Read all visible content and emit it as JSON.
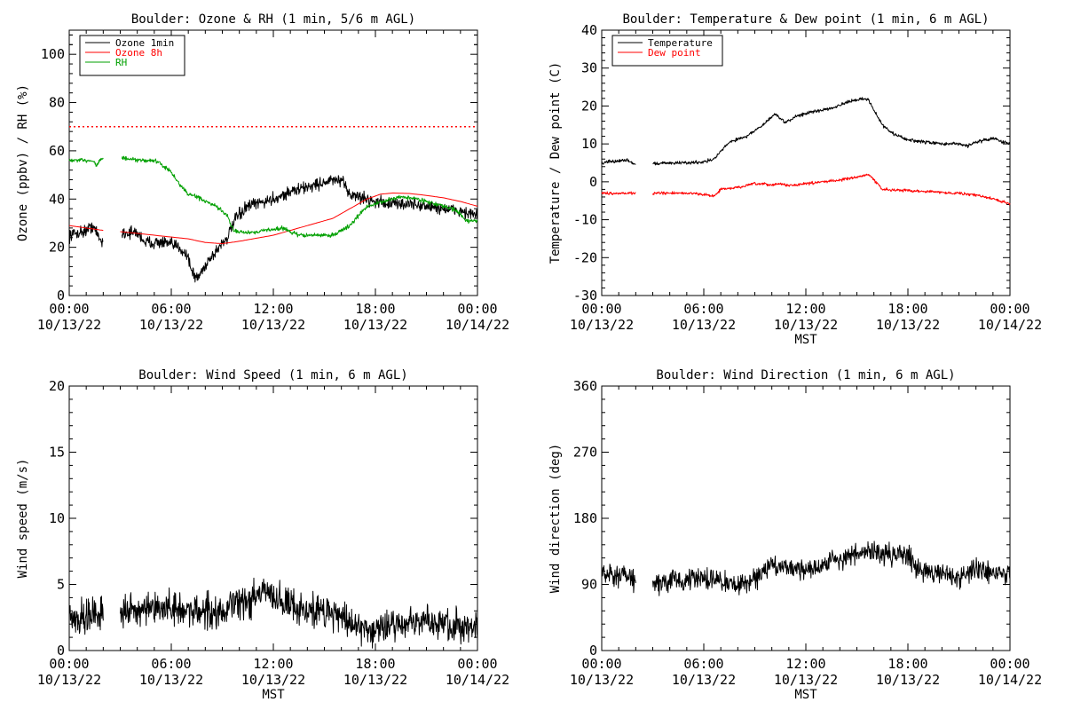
{
  "chart_data": [
    {
      "type": "line",
      "title": "Boulder: Ozone & RH (1 min, 5/6 m AGL)",
      "xlabel": "",
      "ylabel": "Ozone (ppbv) / RH (%)",
      "xlim": [
        "2022-10-13 00:00",
        "2022-10-14 00:00"
      ],
      "ylim": [
        0,
        110
      ],
      "yticks": [
        0,
        20,
        40,
        60,
        80,
        100
      ],
      "x_tick_labels": [
        {
          "time": "00:00",
          "date": "10/13/22"
        },
        {
          "time": "06:00",
          "date": "10/13/22"
        },
        {
          "time": "12:00",
          "date": "10/13/22"
        },
        {
          "time": "18:00",
          "date": "10/13/22"
        },
        {
          "time": "00:00",
          "date": "10/14/22"
        }
      ],
      "legend": "top-left",
      "reference_line": {
        "y": 70,
        "color": "#ff0000",
        "style": "dotted"
      },
      "series": [
        {
          "name": "Ozone 1min",
          "color": "#000000",
          "noise": 1.8,
          "points": [
            [
              0,
              25
            ],
            [
              0.5,
              26
            ],
            [
              1.0,
              27
            ],
            [
              1.4,
              29
            ],
            [
              1.6,
              26
            ],
            [
              1.75,
              24
            ],
            [
              1.9,
              22
            ],
            [
              2.0,
              23
            ],
            [
              null,
              null
            ],
            [
              3.1,
              26
            ],
            [
              4.0,
              26
            ],
            [
              4.5,
              22
            ],
            [
              5.0,
              22
            ],
            [
              5.5,
              22
            ],
            [
              6.0,
              21
            ],
            [
              6.5,
              20
            ],
            [
              7.0,
              16
            ],
            [
              7.2,
              10
            ],
            [
              7.5,
              7
            ],
            [
              7.8,
              10
            ],
            [
              8.2,
              15
            ],
            [
              8.5,
              17
            ],
            [
              9.0,
              22
            ],
            [
              9.3,
              24
            ],
            [
              9.8,
              32
            ],
            [
              10.5,
              37
            ],
            [
              11,
              38
            ],
            [
              12,
              40
            ],
            [
              13,
              43
            ],
            [
              14,
              45
            ],
            [
              15,
              47
            ],
            [
              15.7,
              48
            ],
            [
              16.2,
              46
            ],
            [
              16.5,
              42
            ],
            [
              17,
              41
            ],
            [
              18,
              39
            ],
            [
              19,
              38
            ],
            [
              20,
              38
            ],
            [
              21,
              37
            ],
            [
              22,
              36
            ],
            [
              23,
              35
            ],
            [
              24,
              33
            ]
          ]
        },
        {
          "name": "Ozone 8h",
          "color": "#ff0000",
          "noise": 0,
          "points": [
            [
              0,
              29
            ],
            [
              1,
              28
            ],
            [
              2,
              27
            ],
            [
              null,
              null
            ],
            [
              3,
              26.5
            ],
            [
              5,
              25
            ],
            [
              7,
              23.5
            ],
            [
              8,
              22
            ],
            [
              9,
              21.5
            ],
            [
              10,
              22.5
            ],
            [
              12,
              25
            ],
            [
              14,
              29
            ],
            [
              15.5,
              32
            ],
            [
              16.5,
              36
            ],
            [
              17.5,
              40
            ],
            [
              18.3,
              42
            ],
            [
              19,
              42.5
            ],
            [
              20,
              42.3
            ],
            [
              21,
              41.5
            ],
            [
              22,
              40.5
            ],
            [
              23,
              39
            ],
            [
              24,
              37
            ]
          ]
        },
        {
          "name": "RH",
          "color": "#00a000",
          "noise": 0.6,
          "points": [
            [
              0,
              56
            ],
            [
              1,
              56
            ],
            [
              1.4,
              56
            ],
            [
              1.6,
              54
            ],
            [
              1.8,
              56
            ],
            [
              2,
              57
            ],
            [
              null,
              null
            ],
            [
              3.1,
              57
            ],
            [
              4,
              56
            ],
            [
              5,
              56
            ],
            [
              5.5,
              54
            ],
            [
              6,
              51
            ],
            [
              6.5,
              46
            ],
            [
              7,
              42
            ],
            [
              7.5,
              41
            ],
            [
              8,
              39
            ],
            [
              8.6,
              37
            ],
            [
              9.0,
              35
            ],
            [
              9.3,
              33
            ],
            [
              9.5,
              29
            ],
            [
              9.7,
              27
            ],
            [
              10.5,
              26
            ],
            [
              11.5,
              27
            ],
            [
              12.5,
              28
            ],
            [
              13.5,
              25
            ],
            [
              14.5,
              25
            ],
            [
              15.5,
              25
            ],
            [
              16,
              27
            ],
            [
              16.5,
              29
            ],
            [
              17,
              33
            ],
            [
              17.5,
              37
            ],
            [
              18.5,
              39
            ],
            [
              19.5,
              41
            ],
            [
              20.5,
              40
            ],
            [
              21.5,
              38
            ],
            [
              22.5,
              36
            ],
            [
              23,
              34
            ],
            [
              23.3,
              31
            ],
            [
              24,
              31
            ]
          ]
        }
      ]
    },
    {
      "type": "line",
      "title": "Boulder: Temperature & Dew point (1 min, 6 m AGL)",
      "xlabel": "MST",
      "ylabel": "Temperature / Dew point (C)",
      "xlim": [
        "2022-10-13 00:00",
        "2022-10-14 00:00"
      ],
      "ylim": [
        -30,
        40
      ],
      "yticks": [
        -30,
        -20,
        -10,
        0,
        10,
        20,
        30,
        40
      ],
      "x_tick_labels": [
        {
          "time": "00:00",
          "date": "10/13/22"
        },
        {
          "time": "06:00",
          "date": "10/13/22"
        },
        {
          "time": "12:00",
          "date": "10/13/22"
        },
        {
          "time": "18:00",
          "date": "10/13/22"
        },
        {
          "time": "00:00",
          "date": "10/14/22"
        }
      ],
      "legend": "top-left",
      "series": [
        {
          "name": "Temperature",
          "color": "#000000",
          "noise": 0.3,
          "points": [
            [
              0,
              5
            ],
            [
              1,
              5.5
            ],
            [
              1.5,
              5.8
            ],
            [
              2,
              4.5
            ],
            [
              null,
              null
            ],
            [
              3,
              4.8
            ],
            [
              4,
              5
            ],
            [
              5,
              5
            ],
            [
              6,
              5.3
            ],
            [
              6.6,
              6
            ],
            [
              7,
              8
            ],
            [
              7.5,
              10.5
            ],
            [
              8.5,
              12
            ],
            [
              9.5,
              15
            ],
            [
              10.2,
              18
            ],
            [
              10.8,
              15.5
            ],
            [
              11.5,
              17.5
            ],
            [
              12.5,
              18.5
            ],
            [
              13.5,
              19.5
            ],
            [
              14.5,
              21
            ],
            [
              15.3,
              22
            ],
            [
              15.7,
              21.5
            ],
            [
              16,
              19
            ],
            [
              16.5,
              15
            ],
            [
              17,
              13
            ],
            [
              18,
              11
            ],
            [
              19,
              10.5
            ],
            [
              20,
              10
            ],
            [
              21,
              10
            ],
            [
              21.5,
              9.5
            ],
            [
              22,
              10.5
            ],
            [
              23,
              11.5
            ],
            [
              24,
              10
            ]
          ]
        },
        {
          "name": "Dew point",
          "color": "#ff0000",
          "noise": 0.25,
          "points": [
            [
              0,
              -3
            ],
            [
              1,
              -3
            ],
            [
              2,
              -3
            ],
            [
              null,
              null
            ],
            [
              3,
              -3
            ],
            [
              4,
              -3
            ],
            [
              5,
              -3
            ],
            [
              6,
              -3.3
            ],
            [
              6.6,
              -3.8
            ],
            [
              7,
              -2
            ],
            [
              8,
              -1.5
            ],
            [
              9,
              -0.5
            ],
            [
              10,
              -0.8
            ],
            [
              10.5,
              -0.5
            ],
            [
              11,
              -1
            ],
            [
              12,
              -0.5
            ],
            [
              13,
              0
            ],
            [
              14,
              0.5
            ],
            [
              15,
              1.2
            ],
            [
              15.7,
              2
            ],
            [
              16,
              0.5
            ],
            [
              16.5,
              -2
            ],
            [
              18,
              -2.3
            ],
            [
              19,
              -2.5
            ],
            [
              20,
              -2.8
            ],
            [
              21,
              -3
            ],
            [
              22,
              -3.5
            ],
            [
              23,
              -4.5
            ],
            [
              24,
              -5.8
            ]
          ]
        }
      ]
    },
    {
      "type": "line",
      "title": "Boulder: Wind Speed (1 min, 6 m AGL)",
      "xlabel": "MST",
      "ylabel": "Wind speed (m/s)",
      "xlim": [
        "2022-10-13 00:00",
        "2022-10-14 00:00"
      ],
      "ylim": [
        0,
        20
      ],
      "yticks": [
        0,
        5,
        10,
        15,
        20
      ],
      "x_tick_labels": [
        {
          "time": "00:00",
          "date": "10/13/22"
        },
        {
          "time": "06:00",
          "date": "10/13/22"
        },
        {
          "time": "12:00",
          "date": "10/13/22"
        },
        {
          "time": "18:00",
          "date": "10/13/22"
        },
        {
          "time": "00:00",
          "date": "10/14/22"
        }
      ],
      "series": [
        {
          "name": "",
          "color": "#000000",
          "noise": 0.9,
          "points": [
            [
              0,
              2.5
            ],
            [
              1,
              2.5
            ],
            [
              1.5,
              3
            ],
            [
              2,
              3
            ],
            [
              null,
              null
            ],
            [
              3,
              3
            ],
            [
              4,
              3
            ],
            [
              5,
              3
            ],
            [
              6,
              3.2
            ],
            [
              7,
              3
            ],
            [
              8,
              3
            ],
            [
              9,
              3
            ],
            [
              10,
              3.5
            ],
            [
              11,
              4
            ],
            [
              11.5,
              4.5
            ],
            [
              12,
              4
            ],
            [
              13,
              3.5
            ],
            [
              14,
              3
            ],
            [
              15,
              3
            ],
            [
              16,
              2.7
            ],
            [
              16.5,
              2
            ],
            [
              17,
              1.8
            ],
            [
              18,
              1.7
            ],
            [
              18.5,
              1.8
            ],
            [
              19,
              2
            ],
            [
              20,
              2
            ],
            [
              21,
              2.2
            ],
            [
              22,
              2
            ],
            [
              23,
              1.8
            ],
            [
              24,
              2
            ]
          ]
        }
      ]
    },
    {
      "type": "line",
      "title": "Boulder: Wind Direction (1 min, 6 m AGL)",
      "xlabel": "MST",
      "ylabel": "Wind direction (deg)",
      "xlim": [
        "2022-10-13 00:00",
        "2022-10-14 00:00"
      ],
      "ylim": [
        0,
        360
      ],
      "yticks": [
        0,
        90,
        180,
        270,
        360
      ],
      "x_tick_labels": [
        {
          "time": "00:00",
          "date": "10/13/22"
        },
        {
          "time": "06:00",
          "date": "10/13/22"
        },
        {
          "time": "12:00",
          "date": "10/13/22"
        },
        {
          "time": "18:00",
          "date": "10/13/22"
        },
        {
          "time": "00:00",
          "date": "10/14/22"
        }
      ],
      "series": [
        {
          "name": "",
          "color": "#000000",
          "noise": 10,
          "points": [
            [
              0,
              100
            ],
            [
              1,
              100
            ],
            [
              1.3,
              105
            ],
            [
              1.7,
              95
            ],
            [
              2,
              95
            ],
            [
              null,
              null
            ],
            [
              3,
              90
            ],
            [
              4,
              95
            ],
            [
              5,
              95
            ],
            [
              6,
              98
            ],
            [
              7,
              95
            ],
            [
              8,
              88
            ],
            [
              9,
              100
            ],
            [
              10,
              115
            ],
            [
              11,
              115
            ],
            [
              12,
              110
            ],
            [
              13,
              115
            ],
            [
              13.5,
              125
            ],
            [
              14,
              125
            ],
            [
              15,
              130
            ],
            [
              16,
              135
            ],
            [
              17,
              130
            ],
            [
              18,
              130
            ],
            [
              18.5,
              115
            ],
            [
              19,
              110
            ],
            [
              20,
              105
            ],
            [
              21,
              100
            ],
            [
              22,
              110
            ],
            [
              23,
              105
            ],
            [
              24,
              105
            ]
          ]
        }
      ]
    }
  ]
}
